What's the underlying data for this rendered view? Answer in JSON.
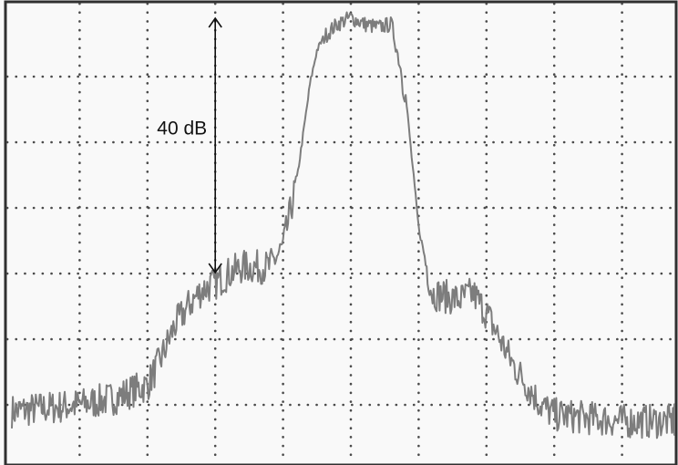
{
  "chart_data": {
    "type": "line",
    "title": "",
    "xlabel": "",
    "ylabel": "",
    "grid": true,
    "divisions": {
      "x": 10,
      "y": 7
    },
    "xlim": [
      0,
      10
    ],
    "ylim": [
      0,
      7
    ],
    "series": [
      {
        "values": {
          "x": [
            0,
            0.5,
            1.0,
            1.5,
            2.0,
            2.2,
            2.4,
            2.6,
            2.8,
            3.0,
            3.2,
            3.4,
            3.6,
            3.8,
            4.0,
            4.2,
            4.4,
            4.5,
            4.6,
            4.8,
            5.0,
            5.2,
            5.4,
            5.6,
            5.8,
            6.0,
            6.2,
            6.4,
            6.6,
            6.8,
            7.0,
            7.2,
            7.4,
            7.6,
            7.8,
            8.0,
            8.5,
            9.0,
            9.5,
            10.0
          ],
          "y": [
            0.9,
            0.95,
            1.0,
            1.1,
            1.3,
            1.7,
            2.2,
            2.5,
            2.75,
            2.85,
            3.0,
            3.1,
            3.1,
            3.1,
            3.4,
            4.4,
            5.9,
            6.4,
            6.6,
            6.8,
            6.9,
            6.8,
            6.75,
            6.8,
            5.8,
            3.7,
            2.7,
            2.65,
            2.6,
            2.7,
            2.4,
            2.0,
            1.6,
            1.3,
            1.0,
            0.85,
            0.8,
            0.75,
            0.75,
            0.75
          ]
        }
      }
    ],
    "annotations": [
      {
        "text": "40 dB",
        "arrow_from_y": 7.0,
        "arrow_to_y": 3.0,
        "x": 3.0
      }
    ]
  }
}
